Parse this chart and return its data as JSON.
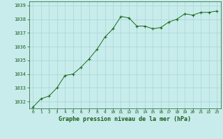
{
  "x": [
    0,
    1,
    2,
    3,
    4,
    5,
    6,
    7,
    8,
    9,
    10,
    11,
    12,
    13,
    14,
    15,
    16,
    17,
    18,
    19,
    20,
    21,
    22,
    23
  ],
  "y": [
    1031.6,
    1032.2,
    1032.4,
    1033.0,
    1033.9,
    1034.0,
    1034.5,
    1035.1,
    1035.8,
    1036.7,
    1037.3,
    1038.2,
    1038.1,
    1037.5,
    1037.5,
    1037.3,
    1037.4,
    1037.8,
    1038.0,
    1038.4,
    1038.3,
    1038.5,
    1038.5,
    1038.6
  ],
  "ylim": [
    1031.5,
    1039.3
  ],
  "yticks": [
    1032,
    1033,
    1034,
    1035,
    1036,
    1037,
    1038,
    1039
  ],
  "xticks": [
    0,
    1,
    2,
    3,
    4,
    5,
    6,
    7,
    8,
    9,
    10,
    11,
    12,
    13,
    14,
    15,
    16,
    17,
    18,
    19,
    20,
    21,
    22,
    23
  ],
  "xlabel": "Graphe pression niveau de la mer (hPa)",
  "line_color": "#1a6b1a",
  "marker_color": "#1a6b1a",
  "bg_color": "#c8ecec",
  "grid_color": "#a8d4d4",
  "text_color": "#1a5c1a",
  "title_color": "#1a5c1a"
}
